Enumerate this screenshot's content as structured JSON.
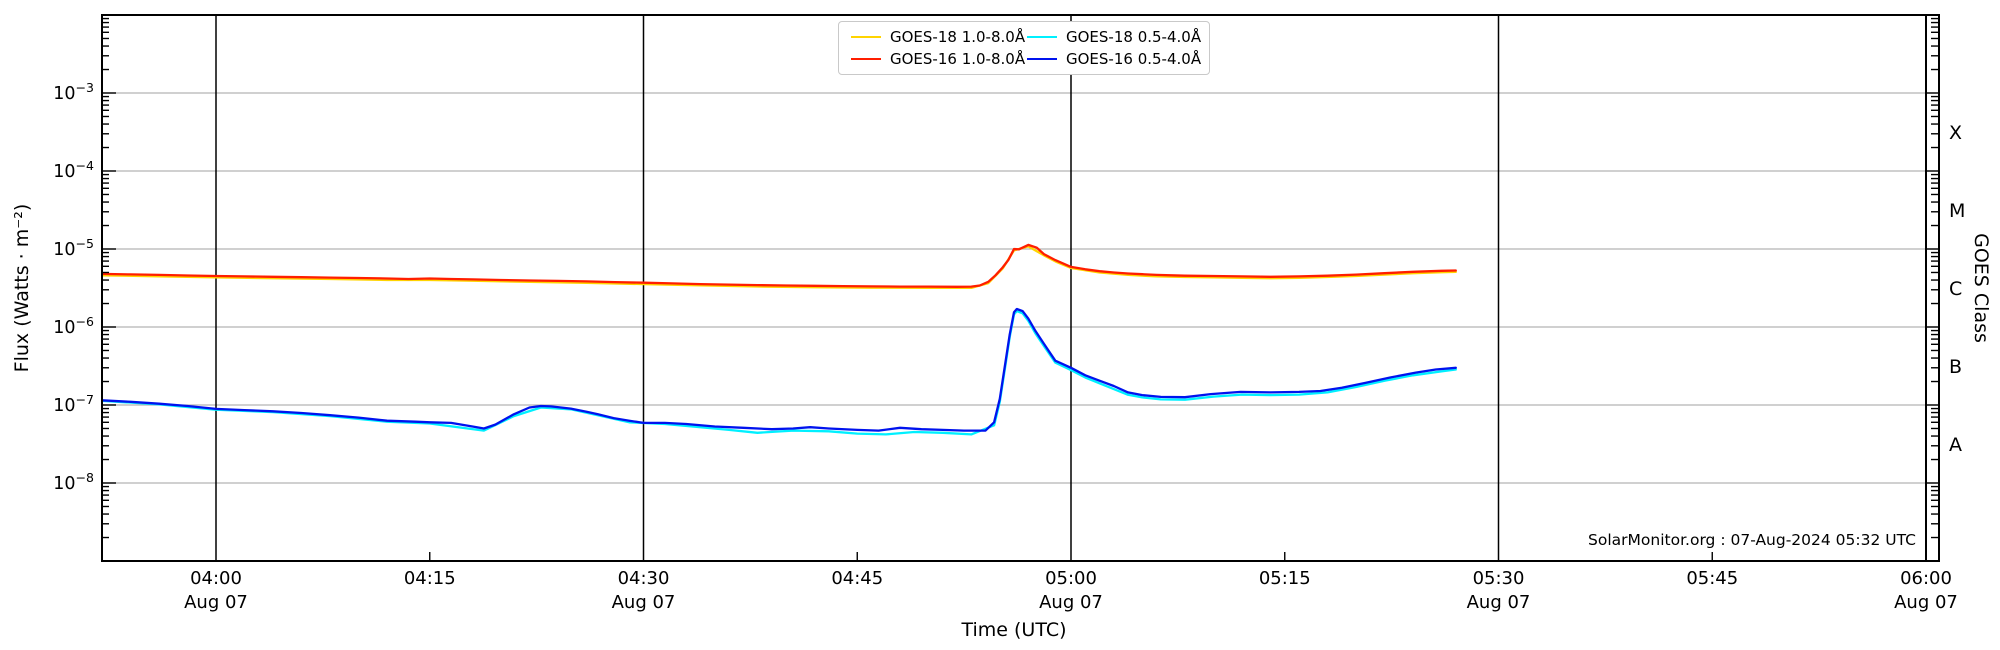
{
  "chart_data": {
    "type": "line",
    "title": "",
    "xlabel": "Time (UTC)",
    "ylabel": "Flux (Watts · m⁻²)",
    "y2label": "GOES Class",
    "watermark": "SolarMonitor.org : 07-Aug-2024 05:32 UTC",
    "grid": "horizontal gray per decade, vertical black each 30 min",
    "legend_position": "top center, 2 columns",
    "x_axis": {
      "unit": "minutes since 2024-08-07 00:00 UTC",
      "min": 232,
      "max": 360,
      "major_lines": [
        240,
        270,
        300,
        330
      ],
      "minor_ticks": [
        255,
        285,
        315,
        345
      ],
      "ticks": [
        {
          "m": 240,
          "label": "04:00",
          "date": "Aug 07"
        },
        {
          "m": 255,
          "label": "04:15"
        },
        {
          "m": 270,
          "label": "04:30",
          "date": "Aug 07"
        },
        {
          "m": 285,
          "label": "04:45"
        },
        {
          "m": 300,
          "label": "05:00",
          "date": "Aug 07"
        },
        {
          "m": 315,
          "label": "05:15"
        },
        {
          "m": 330,
          "label": "05:30",
          "date": "Aug 07"
        },
        {
          "m": 345,
          "label": "05:45"
        },
        {
          "m": 360,
          "label": "06:00",
          "date": "Aug 07"
        }
      ]
    },
    "y_axis": {
      "scale": "log",
      "min_exp": -9,
      "max_exp": -2,
      "ticks": [
        {
          "exp": -3,
          "base": "10",
          "sup": "−3"
        },
        {
          "exp": -4,
          "base": "10",
          "sup": "−4"
        },
        {
          "exp": -5,
          "base": "10",
          "sup": "−5"
        },
        {
          "exp": -6,
          "base": "10",
          "sup": "−6"
        },
        {
          "exp": -7,
          "base": "10",
          "sup": "−7"
        },
        {
          "exp": -8,
          "base": "10",
          "sup": "−8"
        }
      ]
    },
    "y2_axis": {
      "class_labels": [
        {
          "label": "X",
          "exp": -3.5
        },
        {
          "label": "M",
          "exp": -4.5
        },
        {
          "label": "C",
          "exp": -5.5
        },
        {
          "label": "B",
          "exp": -6.5
        },
        {
          "label": "A",
          "exp": -7.5
        }
      ]
    },
    "legend": [
      {
        "label": "GOES-18 1.0-8.0Å",
        "color": "#ffd400"
      },
      {
        "label": "GOES-18 0.5-4.0Å",
        "color": "#00f0ff"
      },
      {
        "label": "GOES-16 1.0-8.0Å",
        "color": "#ff1e00"
      },
      {
        "label": "GOES-16 0.5-4.0Å",
        "color": "#0013ee"
      }
    ],
    "colors": {
      "grid": "#b4b4b4",
      "frame": "#000000"
    },
    "series": [
      {
        "name": "GOES-18 1.0-8.0A",
        "color": "#ffd400",
        "points": [
          [
            232,
            4.6e-06
          ],
          [
            236,
            4.47e-06
          ],
          [
            240,
            4.32e-06
          ],
          [
            244,
            4.22e-06
          ],
          [
            248,
            4.13e-06
          ],
          [
            252,
            4.01e-06
          ],
          [
            255,
            4.01e-06
          ],
          [
            258,
            3.92e-06
          ],
          [
            262,
            3.79e-06
          ],
          [
            266,
            3.69e-06
          ],
          [
            270,
            3.55e-06
          ],
          [
            274,
            3.41e-06
          ],
          [
            278,
            3.31e-06
          ],
          [
            282,
            3.24e-06
          ],
          [
            286,
            3.19e-06
          ],
          [
            290,
            3.17e-06
          ],
          [
            293,
            3.17e-06
          ],
          [
            294.2,
            3.65e-06
          ],
          [
            295.2,
            5.6e-06
          ],
          [
            296,
            9.6e-06
          ],
          [
            297,
            1.08e-05
          ],
          [
            298.1,
            8.3e-06
          ],
          [
            299,
            6.8e-06
          ],
          [
            300,
            5.7e-06
          ],
          [
            302,
            5e-06
          ],
          [
            304,
            4.66e-06
          ],
          [
            306,
            4.46e-06
          ],
          [
            308,
            4.37e-06
          ],
          [
            310,
            4.32e-06
          ],
          [
            312,
            4.27e-06
          ],
          [
            314,
            4.22e-06
          ],
          [
            316,
            4.27e-06
          ],
          [
            318,
            4.37e-06
          ],
          [
            320,
            4.51e-06
          ],
          [
            322,
            4.7e-06
          ],
          [
            324,
            4.9e-06
          ],
          [
            326,
            5.04e-06
          ],
          [
            327,
            5.09e-06
          ]
        ]
      },
      {
        "name": "GOES-18 0.5-4.0A",
        "color": "#00f0ff",
        "points": [
          [
            232,
            1.13e-07
          ],
          [
            236,
            1.02e-07
          ],
          [
            240,
            8.7e-08
          ],
          [
            244,
            8.1e-08
          ],
          [
            248,
            7.2e-08
          ],
          [
            252,
            6.1e-08
          ],
          [
            255,
            5.8e-08
          ],
          [
            258.8,
            4.7e-08
          ],
          [
            260.9,
            7.2e-08
          ],
          [
            262.8,
            9.3e-08
          ],
          [
            264.9,
            8.8e-08
          ],
          [
            266.8,
            7.4e-08
          ],
          [
            269,
            6e-08
          ],
          [
            271.5,
            5.7e-08
          ],
          [
            274,
            5.2e-08
          ],
          [
            276,
            4.8e-08
          ],
          [
            278,
            4.4e-08
          ],
          [
            280.5,
            4.7e-08
          ],
          [
            283,
            4.6e-08
          ],
          [
            285,
            4.3e-08
          ],
          [
            287,
            4.2e-08
          ],
          [
            289,
            4.5e-08
          ],
          [
            291,
            4.4e-08
          ],
          [
            293,
            4.2e-08
          ],
          [
            294.6,
            5.5e-08
          ],
          [
            295,
            1.1e-07
          ],
          [
            295.4,
            3.2e-07
          ],
          [
            295.7,
            7.4e-07
          ],
          [
            296,
            1.45e-06
          ],
          [
            296.2,
            1.6e-06
          ],
          [
            296.6,
            1.5e-06
          ],
          [
            297,
            1.2e-06
          ],
          [
            297.5,
            8.3e-07
          ],
          [
            298.1,
            5.7e-07
          ],
          [
            298.9,
            3.5e-07
          ],
          [
            300,
            2.8e-07
          ],
          [
            301,
            2.25e-07
          ],
          [
            302,
            1.9e-07
          ],
          [
            303,
            1.6e-07
          ],
          [
            304,
            1.35e-07
          ],
          [
            305,
            1.25e-07
          ],
          [
            306.3,
            1.18e-07
          ],
          [
            308,
            1.17e-07
          ],
          [
            310,
            1.28e-07
          ],
          [
            312,
            1.36e-07
          ],
          [
            314,
            1.34e-07
          ],
          [
            316,
            1.36e-07
          ],
          [
            318,
            1.45e-07
          ],
          [
            320,
            1.7e-07
          ],
          [
            322,
            2.05e-07
          ],
          [
            324,
            2.4e-07
          ],
          [
            326,
            2.7e-07
          ],
          [
            327,
            2.85e-07
          ]
        ]
      },
      {
        "name": "GOES-16 1.0-8.0A",
        "color": "#ff1e00",
        "points": [
          [
            232,
            4.8e-06
          ],
          [
            234,
            4.72e-06
          ],
          [
            236,
            4.65e-06
          ],
          [
            238,
            4.58e-06
          ],
          [
            240,
            4.5e-06
          ],
          [
            242,
            4.45e-06
          ],
          [
            244,
            4.4e-06
          ],
          [
            246,
            4.35e-06
          ],
          [
            248,
            4.3e-06
          ],
          [
            250,
            4.25e-06
          ],
          [
            252,
            4.18e-06
          ],
          [
            253.5,
            4.12e-06
          ],
          [
            255,
            4.18e-06
          ],
          [
            256.5,
            4.12e-06
          ],
          [
            258,
            4.08e-06
          ],
          [
            260,
            4e-06
          ],
          [
            262,
            3.95e-06
          ],
          [
            264,
            3.9e-06
          ],
          [
            266,
            3.84e-06
          ],
          [
            268,
            3.76e-06
          ],
          [
            270,
            3.7e-06
          ],
          [
            272,
            3.62e-06
          ],
          [
            274,
            3.55e-06
          ],
          [
            276,
            3.5e-06
          ],
          [
            278,
            3.45e-06
          ],
          [
            280,
            3.4e-06
          ],
          [
            282,
            3.37e-06
          ],
          [
            284,
            3.34e-06
          ],
          [
            286,
            3.32e-06
          ],
          [
            288,
            3.3e-06
          ],
          [
            290,
            3.3e-06
          ],
          [
            292,
            3.28e-06
          ],
          [
            293,
            3.3e-06
          ],
          [
            293.6,
            3.4e-06
          ],
          [
            294.2,
            3.8e-06
          ],
          [
            294.7,
            4.6e-06
          ],
          [
            295.2,
            5.8e-06
          ],
          [
            295.6,
            7.2e-06
          ],
          [
            296,
            1e-05
          ],
          [
            296.35,
            9.9e-06
          ],
          [
            297,
            1.13e-05
          ],
          [
            297.6,
            1.04e-05
          ],
          [
            298.1,
            8.6e-06
          ],
          [
            298.9,
            7.2e-06
          ],
          [
            300,
            5.9e-06
          ],
          [
            301,
            5.5e-06
          ],
          [
            302,
            5.2e-06
          ],
          [
            303,
            5e-06
          ],
          [
            304,
            4.85e-06
          ],
          [
            305,
            4.75e-06
          ],
          [
            306,
            4.65e-06
          ],
          [
            307,
            4.6e-06
          ],
          [
            308,
            4.55e-06
          ],
          [
            310,
            4.5e-06
          ],
          [
            312,
            4.45e-06
          ],
          [
            314,
            4.4e-06
          ],
          [
            316,
            4.45e-06
          ],
          [
            318,
            4.55e-06
          ],
          [
            320,
            4.7e-06
          ],
          [
            322,
            4.9e-06
          ],
          [
            324,
            5.1e-06
          ],
          [
            326,
            5.25e-06
          ],
          [
            327,
            5.3e-06
          ]
        ]
      },
      {
        "name": "GOES-16 0.5-4.0A",
        "color": "#0013ee",
        "points": [
          [
            232,
            1.15e-07
          ],
          [
            234,
            1.1e-07
          ],
          [
            236,
            1.04e-07
          ],
          [
            238,
            9.7e-08
          ],
          [
            240,
            8.9e-08
          ],
          [
            242,
            8.6e-08
          ],
          [
            244,
            8.3e-08
          ],
          [
            246,
            7.9e-08
          ],
          [
            248,
            7.4e-08
          ],
          [
            250,
            6.9e-08
          ],
          [
            252,
            6.3e-08
          ],
          [
            254,
            6.1e-08
          ],
          [
            255,
            6e-08
          ],
          [
            256.5,
            5.9e-08
          ],
          [
            258,
            5.3e-08
          ],
          [
            258.8,
            5e-08
          ],
          [
            259.6,
            5.6e-08
          ],
          [
            260.9,
            7.6e-08
          ],
          [
            262,
            9.3e-08
          ],
          [
            262.8,
            9.7e-08
          ],
          [
            263.5,
            9.6e-08
          ],
          [
            264.9,
            9e-08
          ],
          [
            266,
            8.2e-08
          ],
          [
            266.8,
            7.6e-08
          ],
          [
            267.9,
            6.8e-08
          ],
          [
            269,
            6.3e-08
          ],
          [
            270,
            5.9e-08
          ],
          [
            271.5,
            5.9e-08
          ],
          [
            273,
            5.7e-08
          ],
          [
            275,
            5.3e-08
          ],
          [
            277,
            5.1e-08
          ],
          [
            279,
            4.9e-08
          ],
          [
            280.5,
            5e-08
          ],
          [
            281.7,
            5.2e-08
          ],
          [
            283,
            5e-08
          ],
          [
            285,
            4.8e-08
          ],
          [
            286.5,
            4.7e-08
          ],
          [
            288,
            5.1e-08
          ],
          [
            289.5,
            4.9e-08
          ],
          [
            291,
            4.8e-08
          ],
          [
            292.5,
            4.7e-08
          ],
          [
            294,
            4.7e-08
          ],
          [
            294.6,
            6e-08
          ],
          [
            295,
            1.2e-07
          ],
          [
            295.4,
            3.5e-07
          ],
          [
            295.7,
            8e-07
          ],
          [
            296,
            1.55e-06
          ],
          [
            296.2,
            1.7e-06
          ],
          [
            296.6,
            1.6e-06
          ],
          [
            297,
            1.28e-06
          ],
          [
            297.5,
            8.9e-07
          ],
          [
            298.1,
            6.1e-07
          ],
          [
            298.9,
            3.7e-07
          ],
          [
            300,
            3e-07
          ],
          [
            301,
            2.4e-07
          ],
          [
            302,
            2.05e-07
          ],
          [
            303,
            1.75e-07
          ],
          [
            304,
            1.45e-07
          ],
          [
            305,
            1.34e-07
          ],
          [
            306.3,
            1.27e-07
          ],
          [
            308,
            1.26e-07
          ],
          [
            309.8,
            1.38e-07
          ],
          [
            311.9,
            1.47e-07
          ],
          [
            314,
            1.45e-07
          ],
          [
            316,
            1.47e-07
          ],
          [
            317.5,
            1.51e-07
          ],
          [
            319,
            1.66e-07
          ],
          [
            320.7,
            1.93e-07
          ],
          [
            322.4,
            2.25e-07
          ],
          [
            324.2,
            2.6e-07
          ],
          [
            325.6,
            2.85e-07
          ],
          [
            327,
            3e-07
          ]
        ]
      }
    ]
  }
}
